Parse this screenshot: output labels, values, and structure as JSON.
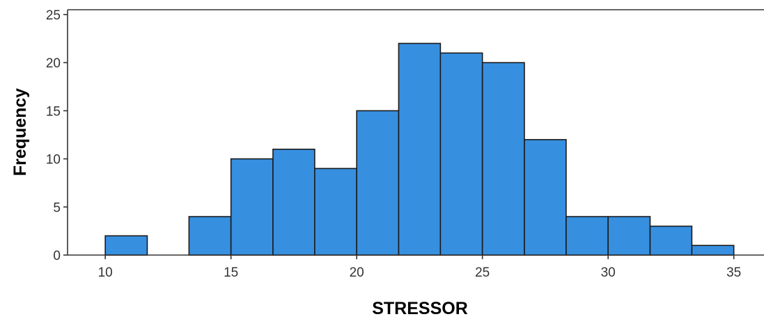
{
  "chart_data": {
    "type": "bar",
    "subtype": "histogram",
    "xlabel": "STRESSOR",
    "ylabel": "Frequency",
    "xlim": [
      8.5,
      36.2
    ],
    "ylim": [
      0,
      25.5
    ],
    "x_ticks": [
      10,
      15,
      20,
      25,
      30,
      35
    ],
    "y_ticks": [
      0,
      5,
      10,
      15,
      20,
      25
    ],
    "bins": [
      {
        "start": 10.0,
        "end": 11.67,
        "count": 2
      },
      {
        "start": 11.67,
        "end": 13.33,
        "count": 0
      },
      {
        "start": 13.33,
        "end": 15.0,
        "count": 4
      },
      {
        "start": 15.0,
        "end": 16.67,
        "count": 10
      },
      {
        "start": 16.67,
        "end": 18.33,
        "count": 11
      },
      {
        "start": 18.33,
        "end": 20.0,
        "count": 9
      },
      {
        "start": 20.0,
        "end": 21.67,
        "count": 15
      },
      {
        "start": 21.67,
        "end": 23.33,
        "count": 22
      },
      {
        "start": 23.33,
        "end": 25.0,
        "count": 21
      },
      {
        "start": 25.0,
        "end": 26.67,
        "count": 20
      },
      {
        "start": 26.67,
        "end": 28.33,
        "count": 12
      },
      {
        "start": 28.33,
        "end": 30.0,
        "count": 4
      },
      {
        "start": 30.0,
        "end": 31.67,
        "count": 4
      },
      {
        "start": 31.67,
        "end": 33.33,
        "count": 3
      },
      {
        "start": 33.33,
        "end": 35.0,
        "count": 1
      }
    ],
    "bar_color": "#378fe0",
    "bar_edge_color": "#1a1a1a",
    "grid": false,
    "legend": "none"
  }
}
